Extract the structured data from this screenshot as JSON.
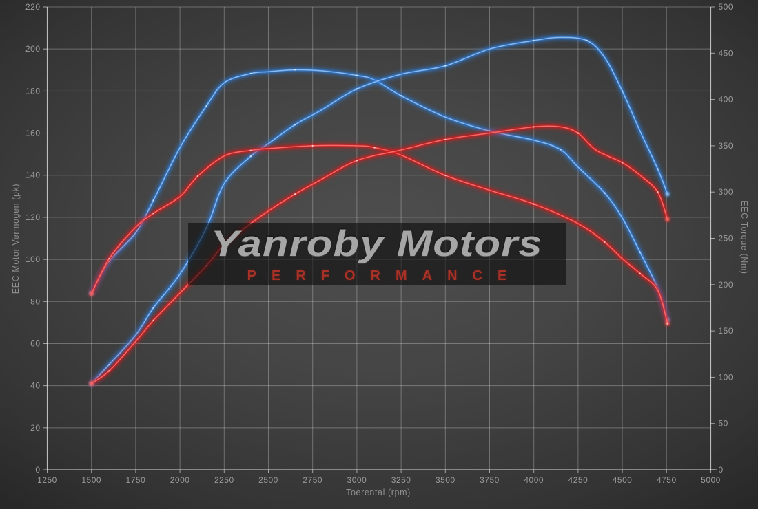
{
  "watermark": {
    "title": "Yanroby Motors",
    "subtitle": "PERFORMANCE"
  },
  "chart_data": {
    "type": "line",
    "xlabel": "Toerental (rpm)",
    "ylabel_left": "EEC Motor Vermogen (pk)",
    "ylabel_right": "EEC Torque (Nm)",
    "x_range": [
      1250,
      5000
    ],
    "y_left_range": [
      0,
      220
    ],
    "y_right_range": [
      0,
      500
    ],
    "x_ticks": [
      1250,
      1500,
      1750,
      2000,
      2250,
      2500,
      2750,
      3000,
      3250,
      3500,
      3750,
      4000,
      4250,
      4500,
      4750,
      5000
    ],
    "y_left_ticks": [
      0,
      20,
      40,
      60,
      80,
      100,
      120,
      140,
      160,
      180,
      200,
      220
    ],
    "y_right_ticks": [
      0,
      50,
      100,
      150,
      200,
      250,
      300,
      350,
      400,
      450,
      500
    ],
    "grid": true,
    "legend": "none",
    "colors": {
      "blue_glow": "#2e7bd6",
      "blue_core": "#8ab9ef",
      "blue_dot": "#d6eaff",
      "red_glow": "#d81f1f",
      "red_core": "#f56a6a",
      "red_dot": "#ffd4d8",
      "grid": "rgba(255,255,255,0.28)",
      "axis": "rgba(255,255,255,0.55)",
      "tick_text": "#9a9a9a"
    },
    "series": [
      {
        "name": "blue-torque",
        "color_key": "blue",
        "axis": "right",
        "unit": "Nm",
        "points": [
          [
            1500,
            191
          ],
          [
            1600,
            225
          ],
          [
            1750,
            256
          ],
          [
            1850,
            291
          ],
          [
            2000,
            348
          ],
          [
            2150,
            393
          ],
          [
            2250,
            418
          ],
          [
            2400,
            428
          ],
          [
            2500,
            430
          ],
          [
            2650,
            432
          ],
          [
            2800,
            431
          ],
          [
            3000,
            426
          ],
          [
            3100,
            421
          ],
          [
            3250,
            404
          ],
          [
            3500,
            381
          ],
          [
            3750,
            366
          ],
          [
            4000,
            356
          ],
          [
            4150,
            346
          ],
          [
            4250,
            327
          ],
          [
            4400,
            299
          ],
          [
            4500,
            272
          ],
          [
            4600,
            235
          ],
          [
            4700,
            196
          ],
          [
            4755,
            162
          ]
        ]
      },
      {
        "name": "blue-power",
        "color_key": "blue",
        "axis": "left",
        "unit": "pk",
        "points": [
          [
            1500,
            41
          ],
          [
            1600,
            50
          ],
          [
            1750,
            64
          ],
          [
            1850,
            77
          ],
          [
            2000,
            93
          ],
          [
            2150,
            115
          ],
          [
            2250,
            136
          ],
          [
            2400,
            149
          ],
          [
            2500,
            155
          ],
          [
            2650,
            164
          ],
          [
            2800,
            171
          ],
          [
            3000,
            181
          ],
          [
            3250,
            188
          ],
          [
            3500,
            192
          ],
          [
            3750,
            200
          ],
          [
            4000,
            204
          ],
          [
            4150,
            205.5
          ],
          [
            4300,
            204
          ],
          [
            4400,
            196
          ],
          [
            4500,
            180
          ],
          [
            4600,
            161
          ],
          [
            4700,
            143
          ],
          [
            4755,
            131
          ]
        ]
      },
      {
        "name": "red-torque",
        "color_key": "red",
        "axis": "right",
        "unit": "Nm",
        "points": [
          [
            1500,
            190
          ],
          [
            1600,
            228
          ],
          [
            1750,
            262
          ],
          [
            1850,
            277
          ],
          [
            2000,
            295
          ],
          [
            2100,
            317
          ],
          [
            2250,
            339
          ],
          [
            2400,
            345
          ],
          [
            2500,
            347
          ],
          [
            2750,
            350
          ],
          [
            3000,
            350
          ],
          [
            3100,
            348
          ],
          [
            3250,
            340
          ],
          [
            3500,
            318
          ],
          [
            3750,
            302
          ],
          [
            4000,
            287
          ],
          [
            4250,
            266
          ],
          [
            4400,
            246
          ],
          [
            4500,
            228
          ],
          [
            4600,
            212
          ],
          [
            4700,
            194
          ],
          [
            4755,
            158
          ]
        ]
      },
      {
        "name": "red-power",
        "color_key": "red",
        "axis": "left",
        "unit": "pk",
        "points": [
          [
            1500,
            41
          ],
          [
            1600,
            47
          ],
          [
            1750,
            61
          ],
          [
            1850,
            71
          ],
          [
            2000,
            84
          ],
          [
            2150,
            97
          ],
          [
            2250,
            107
          ],
          [
            2400,
            117
          ],
          [
            2500,
            123
          ],
          [
            2650,
            131
          ],
          [
            2800,
            138
          ],
          [
            3000,
            147
          ],
          [
            3250,
            152
          ],
          [
            3500,
            157
          ],
          [
            3750,
            160
          ],
          [
            4000,
            163
          ],
          [
            4150,
            163
          ],
          [
            4250,
            160
          ],
          [
            4350,
            152
          ],
          [
            4500,
            146
          ],
          [
            4600,
            140
          ],
          [
            4700,
            132
          ],
          [
            4755,
            119
          ]
        ]
      }
    ]
  }
}
